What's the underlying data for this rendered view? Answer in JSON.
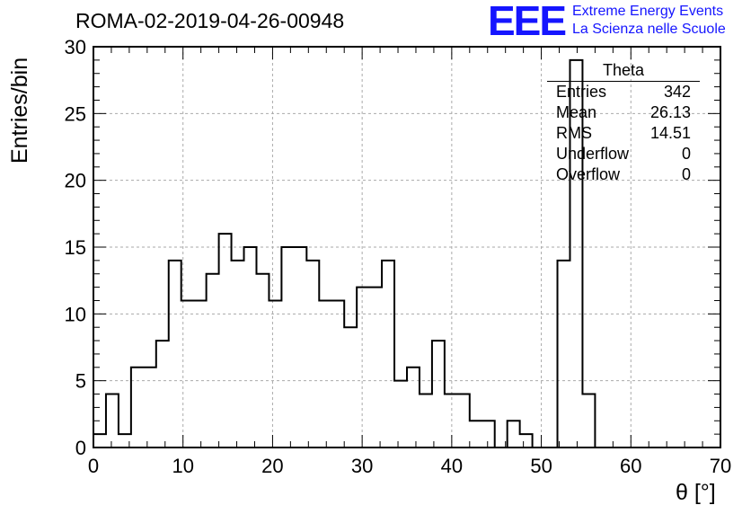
{
  "header": {
    "run_title": "ROMA-02-2019-04-26-00948",
    "logo_text": "EEE",
    "logo_line1": "Extreme Energy Events",
    "logo_line2": "La Scienza nelle Scuole"
  },
  "stats_box": {
    "title": "Theta",
    "rows": [
      {
        "label": "Entries",
        "value": "342"
      },
      {
        "label": "Mean",
        "value": "26.13"
      },
      {
        "label": "RMS",
        "value": "14.51"
      },
      {
        "label": "Underflow",
        "value": "0"
      },
      {
        "label": "Overflow",
        "value": "0"
      }
    ]
  },
  "colors": {
    "logo": "#1515ff",
    "line": "#000000",
    "grid": "#aaaaaa"
  },
  "chart_data": {
    "type": "bar",
    "style": "step-histogram",
    "title": "ROMA-02-2019-04-26-00948",
    "xlabel": "θ [°]",
    "ylabel": "Entries/bin",
    "xlim": [
      0,
      70
    ],
    "ylim": [
      0,
      30
    ],
    "xticks": [
      0,
      10,
      20,
      30,
      40,
      50,
      60,
      70
    ],
    "yticks": [
      0,
      5,
      10,
      15,
      20,
      25,
      30
    ],
    "grid": true,
    "bin_width": 1.4,
    "bin_edges_start": 0,
    "values": [
      1,
      4,
      1,
      6,
      6,
      8,
      14,
      11,
      11,
      13,
      16,
      14,
      15,
      13,
      11,
      15,
      15,
      14,
      11,
      11,
      9,
      12,
      12,
      14,
      5,
      6,
      4,
      8,
      4,
      4,
      2,
      2,
      0,
      2,
      1,
      0,
      0,
      14,
      29,
      4,
      0,
      0,
      0,
      0,
      0,
      0,
      0,
      0,
      0,
      0
    ]
  }
}
